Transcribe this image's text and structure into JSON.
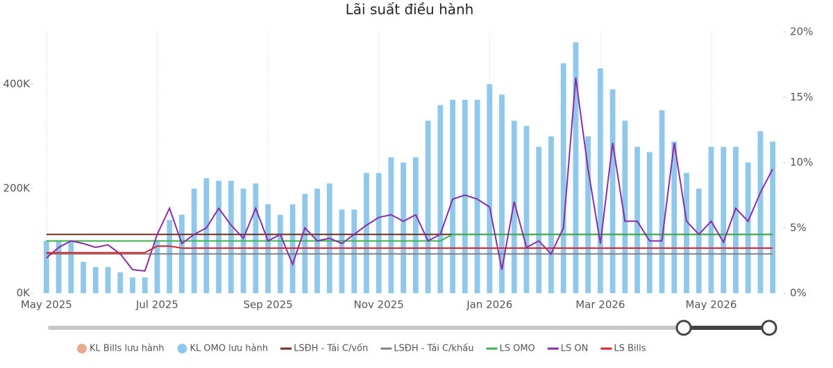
{
  "chart_data": {
    "type": "combo",
    "title": "Lãi suất điều hành",
    "categories": [
      "May 2025",
      null,
      null,
      null,
      null,
      null,
      null,
      null,
      null,
      "Jul 2025",
      null,
      null,
      null,
      null,
      null,
      null,
      null,
      null,
      "Sep 2025",
      null,
      null,
      null,
      null,
      null,
      null,
      null,
      null,
      "Nov 2025",
      null,
      null,
      null,
      null,
      null,
      null,
      null,
      null,
      "Jan 2026",
      null,
      null,
      null,
      null,
      null,
      null,
      null,
      null,
      "Mar 2026",
      null,
      null,
      null,
      null,
      null,
      null,
      null,
      null,
      "May 2026",
      null,
      null,
      null,
      null,
      null
    ],
    "ylim": [
      0,
      500000
    ],
    "yticks": [
      {
        "value": 0,
        "label": "0K"
      },
      {
        "value": 200000,
        "label": "200K"
      },
      {
        "value": 400000,
        "label": "400K"
      }
    ],
    "y2lim": [
      0,
      20
    ],
    "y2ticks": [
      {
        "value": 0,
        "label": "0%"
      },
      {
        "value": 5,
        "label": "5%"
      },
      {
        "value": 10,
        "label": "10%"
      },
      {
        "value": 15,
        "label": "15%"
      },
      {
        "value": 20,
        "label": "20%"
      }
    ],
    "grid": true,
    "legend": "bottom",
    "series": [
      {
        "name": "KL Bills lưu hành",
        "type": "bar",
        "color": "#e8a98e",
        "values": [
          null,
          null,
          null,
          null,
          null,
          null,
          null,
          null,
          15000,
          20000,
          22000,
          10000,
          null,
          null,
          null,
          null,
          null,
          null,
          null,
          null,
          null,
          null,
          null,
          null,
          null,
          null,
          null,
          null,
          null,
          null,
          null,
          null,
          null,
          null,
          null,
          null,
          null,
          null,
          null,
          null,
          null,
          null,
          null,
          null,
          null,
          null,
          null,
          null,
          null,
          null,
          null,
          null,
          null,
          null,
          null,
          null,
          null,
          null,
          null,
          null
        ]
      },
      {
        "name": "KL OMO lưu hành",
        "type": "bar",
        "color": "#8fc8ea",
        "values": [
          100000,
          100000,
          100000,
          60000,
          50000,
          50000,
          40000,
          30000,
          30000,
          100000,
          140000,
          150000,
          200000,
          220000,
          215000,
          215000,
          200000,
          210000,
          170000,
          150000,
          170000,
          190000,
          200000,
          210000,
          160000,
          160000,
          230000,
          230000,
          260000,
          250000,
          260000,
          330000,
          360000,
          370000,
          370000,
          370000,
          400000,
          380000,
          330000,
          320000,
          280000,
          300000,
          440000,
          480000,
          300000,
          430000,
          390000,
          330000,
          280000,
          270000,
          350000,
          290000,
          230000,
          200000,
          280000,
          280000,
          280000,
          250000,
          310000,
          290000
        ]
      },
      {
        "name": "LSĐH - Tái C/vốn",
        "type": "line",
        "axis": "y2",
        "color": "#6b2d1c",
        "values": [
          4.5,
          4.5,
          4.5,
          4.5,
          4.5,
          4.5,
          4.5,
          4.5,
          4.5,
          4.5,
          4.5,
          4.5,
          4.5,
          4.5,
          4.5,
          4.5,
          4.5,
          4.5,
          4.5,
          4.5,
          4.5,
          4.5,
          4.5,
          4.5,
          4.5,
          4.5,
          4.5,
          4.5,
          4.5,
          4.5,
          4.5,
          4.5,
          4.5,
          4.5,
          4.5,
          4.5,
          4.5,
          4.5,
          4.5,
          4.5,
          4.5,
          4.5,
          4.5,
          4.5,
          4.5,
          4.5,
          4.5,
          4.5,
          4.5,
          4.5,
          4.5,
          4.5,
          4.5,
          4.5,
          4.5,
          4.5,
          4.5,
          4.5,
          4.5,
          4.5
        ]
      },
      {
        "name": "LSĐH - Tái C/khấu",
        "type": "line",
        "axis": "y2",
        "color": "#808080",
        "values": [
          3,
          3,
          3,
          3,
          3,
          3,
          3,
          3,
          3,
          3,
          3,
          3,
          3,
          3,
          3,
          3,
          3,
          3,
          3,
          3,
          3,
          3,
          3,
          3,
          3,
          3,
          3,
          3,
          3,
          3,
          3,
          3,
          3,
          3,
          3,
          3,
          3,
          3,
          3,
          3,
          3,
          3,
          3,
          3,
          3,
          3,
          3,
          3,
          3,
          3,
          3,
          3,
          3,
          3,
          3,
          3,
          3,
          3,
          3,
          3
        ]
      },
      {
        "name": "LS OMO",
        "type": "line",
        "axis": "y2",
        "color": "#3cb44b",
        "values": [
          4,
          4,
          4,
          4,
          4,
          4,
          4,
          4,
          4,
          4,
          4,
          4,
          4,
          4,
          4,
          4,
          4,
          4,
          4,
          4,
          4,
          4,
          4,
          4,
          4,
          4,
          4,
          4,
          4,
          4,
          4,
          4,
          4,
          4.5,
          4.5,
          4.5,
          4.5,
          4.5,
          4.5,
          4.5,
          4.5,
          4.5,
          4.5,
          4.5,
          4.5,
          4.5,
          4.5,
          4.5,
          4.5,
          4.5,
          4.5,
          4.5,
          4.5,
          4.5,
          4.5,
          4.5,
          4.5,
          4.5,
          4.5,
          4.5
        ]
      },
      {
        "name": "LS ON",
        "type": "line",
        "axis": "y2",
        "color": "#8a2ca8",
        "values": [
          2.7,
          3.5,
          4,
          3.8,
          3.5,
          3.7,
          3,
          1.8,
          1.7,
          4.5,
          6.5,
          3.8,
          4.5,
          5,
          6.5,
          5.2,
          4.2,
          6.5,
          4,
          4.5,
          2.2,
          5,
          4,
          4.2,
          3.8,
          4.5,
          5.2,
          5.8,
          6,
          5.5,
          6,
          4,
          4.5,
          7.2,
          7.5,
          7.2,
          6.6,
          1.8,
          7,
          3.5,
          4,
          3,
          5,
          16.5,
          9.5,
          3.8,
          11.5,
          5.5,
          5.5,
          4,
          4,
          11.5,
          5.5,
          4.5,
          5.5,
          3.9,
          6.5,
          5.5,
          7.7,
          9.5
        ]
      },
      {
        "name": "LS Bills",
        "type": "line",
        "axis": "y2",
        "color": "#e0202a",
        "values": [
          3.1,
          3.1,
          3.1,
          3.1,
          3.1,
          3.1,
          3.1,
          3.1,
          3.1,
          3.6,
          3.6,
          3.45,
          3.45,
          3.45,
          3.45,
          3.45,
          3.45,
          3.45,
          3.45,
          3.45,
          3.45,
          3.45,
          3.45,
          3.45,
          3.45,
          3.45,
          3.45,
          3.45,
          3.45,
          3.45,
          3.45,
          3.45,
          3.45,
          3.45,
          3.45,
          3.45,
          3.45,
          3.45,
          3.45,
          3.45,
          3.45,
          3.45,
          3.45,
          3.45,
          3.45,
          3.45,
          3.45,
          3.45,
          3.45,
          3.45,
          3.45,
          3.45,
          3.45,
          3.45,
          3.45,
          3.45,
          3.45,
          3.45,
          3.45,
          3.45
        ]
      }
    ]
  }
}
